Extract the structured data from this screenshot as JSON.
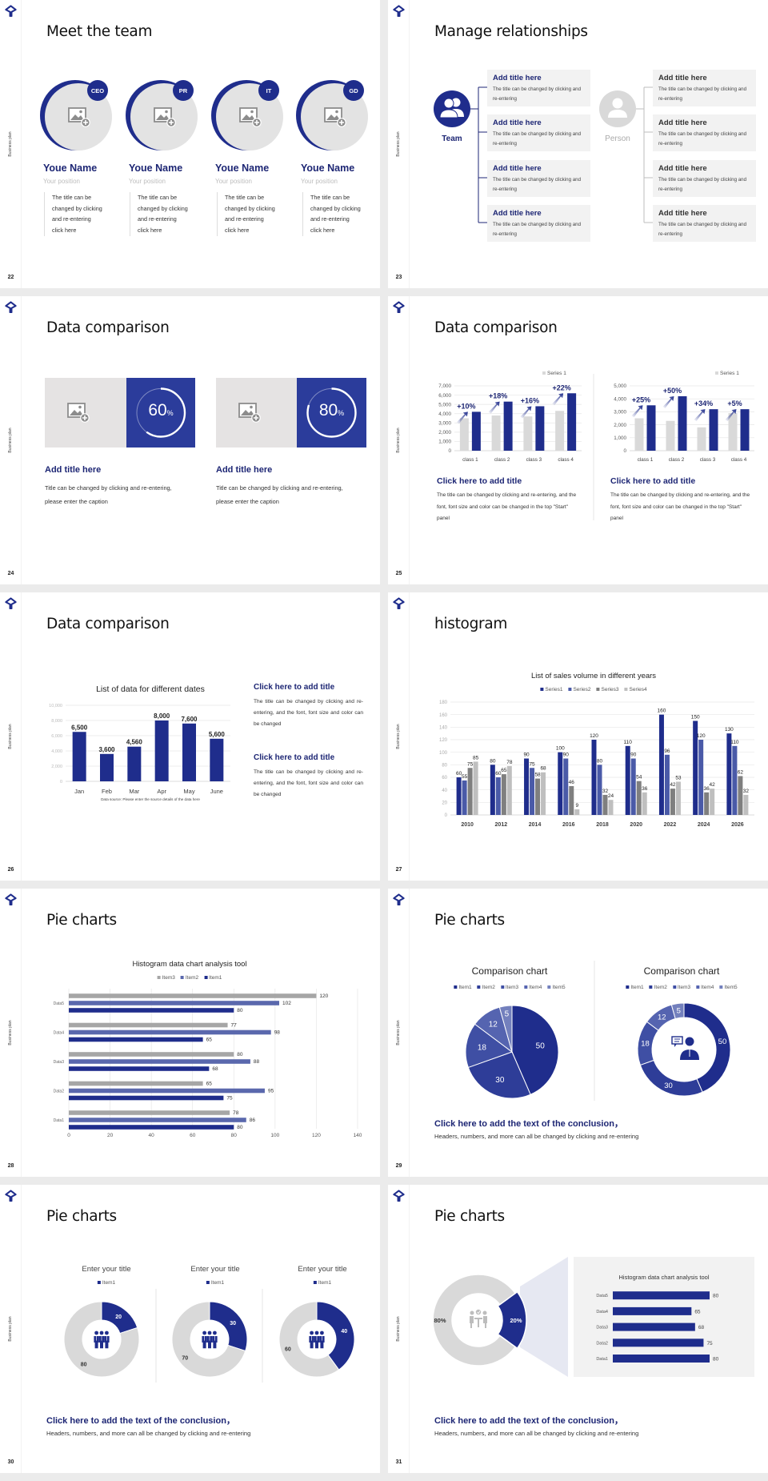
{
  "rail_label": "Business plan",
  "colors": {
    "brand": "#1f2d8c",
    "grey": "#d9d9d9",
    "title_blue": "#1d2674"
  },
  "s22": {
    "page": "22",
    "title": "Meet the team",
    "members": [
      {
        "badge": "CEO",
        "name": "Youe Name",
        "position": "Your position",
        "desc": "The title can be\nchanged by clicking\nand re-entering\nclick here"
      },
      {
        "badge": "PR",
        "name": "Youe Name",
        "position": "Your position",
        "desc": "The title can be\nchanged by clicking\nand re-entering\nclick here"
      },
      {
        "badge": "IT",
        "name": "Youe Name",
        "position": "Your position",
        "desc": "The title can be\nchanged by clicking\nand re-entering\nclick here"
      },
      {
        "badge": "GD",
        "name": "Youe Name",
        "position": "Your position",
        "desc": "The title can be\nchanged by clicking\nand re-entering\nclick here"
      }
    ]
  },
  "s23": {
    "page": "23",
    "title": "Manage relationships",
    "left_label": "Team",
    "right_label": "Person",
    "box_title": "Add title here",
    "box_text": "The title can be changed by clicking and re-entering"
  },
  "s24": {
    "page": "24",
    "title": "Data comparison",
    "cards": [
      {
        "value": 60,
        "pct": "60",
        "unit": "%",
        "title": "Add title here",
        "text": "Title can be changed by clicking and re-entering, please enter the caption"
      },
      {
        "value": 80,
        "pct": "80",
        "unit": "%",
        "title": "Add title here",
        "text": "Title can be changed by clicking and re-entering, please enter the caption"
      }
    ]
  },
  "s25": {
    "page": "25",
    "title": "Data comparison",
    "panels": [
      {
        "title": "Click here to add title",
        "text": "The title can be changed by clicking and re-entering, and the font, font size and color can be changed in the top \"Start\" panel"
      },
      {
        "title": "Click here to add title",
        "text": "The title can be changed by clicking and re-entering, and the font, font size and color can be changed in the top \"Start\" panel"
      }
    ]
  },
  "s26": {
    "page": "26",
    "title": "Data comparison",
    "blocks": [
      {
        "title": "Click here to add title",
        "text": "The title can be changed by clicking and re-entering, and the font, font size and color can be changed"
      },
      {
        "title": "Click here to add title",
        "text": "The title can be changed by clicking and re-entering, and the font, font size and color can be changed"
      }
    ]
  },
  "s27": {
    "page": "27",
    "title": "histogram"
  },
  "s28": {
    "page": "28",
    "title": "Pie charts"
  },
  "s29": {
    "page": "29",
    "title": "Pie charts",
    "conclusion": "Click here to add the text of the conclusion，",
    "conclusion_text": "Headers, numbers, and more can all be changed by clicking and re-entering"
  },
  "s30": {
    "page": "30",
    "title": "Pie charts",
    "conclusion": "Click here to add the text of the conclusion，",
    "conclusion_text": "Headers, numbers, and more can all be changed by clicking and re-entering"
  },
  "s31": {
    "page": "31",
    "title": "Pie charts",
    "conclusion": "Click here to add the text of the conclusion，",
    "conclusion_text": "Headers, numbers, and more can all be changed by clicking and re-entering"
  },
  "chart_data": [
    {
      "id": "s25a",
      "type": "bar",
      "categories": [
        "class 1",
        "class 2",
        "class 3",
        "class 4"
      ],
      "series": [
        {
          "name": "Series 1",
          "values": [
            3500,
            3800,
            3700,
            4300
          ],
          "color": "#d9d9d9"
        },
        {
          "values": [
            4200,
            5300,
            4800,
            6200
          ],
          "color": "#1f2d8c"
        }
      ],
      "annotations": [
        "+10%",
        "+18%",
        "+16%",
        "+22%"
      ],
      "ylim": [
        0,
        7000
      ],
      "ytick": 1000,
      "legend": "top-right",
      "grid": true
    },
    {
      "id": "s25b",
      "type": "bar",
      "categories": [
        "class 1",
        "class 2",
        "class 3",
        "class 4"
      ],
      "series": [
        {
          "name": "Series 1",
          "values": [
            2500,
            2300,
            1800,
            2900
          ],
          "color": "#d9d9d9"
        },
        {
          "values": [
            3500,
            4200,
            3200,
            3200
          ],
          "color": "#1f2d8c"
        }
      ],
      "annotations": [
        "+25%",
        "+50%",
        "+34%",
        "+5%"
      ],
      "ylim": [
        0,
        5000
      ],
      "ytick": 1000,
      "legend": "top-right",
      "grid": true
    },
    {
      "id": "s26",
      "type": "bar",
      "title": "List of data for different dates",
      "note": "Data source: Please enter the source details of the data here",
      "categories": [
        "Jan",
        "Feb",
        "Mar",
        "Apr",
        "May",
        "June"
      ],
      "series": [
        {
          "values": [
            6500,
            3600,
            4560,
            8000,
            7600,
            5600
          ],
          "color": "#1f2d8c"
        }
      ],
      "ylim": [
        0,
        10000
      ],
      "ytick": 2000,
      "grid": true
    },
    {
      "id": "s27",
      "type": "bar",
      "title": "List of sales volume in different years",
      "categories": [
        "2010",
        "2012",
        "2014",
        "2016",
        "2018",
        "2020",
        "2022",
        "2024",
        "2026"
      ],
      "series": [
        {
          "name": "Series1",
          "values": [
            60,
            80,
            90,
            100,
            120,
            110,
            160,
            150,
            130
          ],
          "color": "#1f2d8c"
        },
        {
          "name": "Series2",
          "values": [
            55,
            60,
            75,
            90,
            80,
            90,
            96,
            120,
            110
          ],
          "color": "#4a5aa8"
        },
        {
          "name": "Series3",
          "values": [
            75,
            65,
            58,
            46,
            32,
            54,
            42,
            36,
            62
          ],
          "color": "#7f7f7f"
        },
        {
          "name": "Series4",
          "values": [
            85,
            78,
            68,
            9,
            24,
            36,
            53,
            42,
            32
          ],
          "color": "#bfbfbf"
        }
      ],
      "ylim": [
        0,
        180
      ],
      "ytick": 20,
      "legend": "top",
      "grid": true
    },
    {
      "id": "s28",
      "type": "bar",
      "orientation": "horizontal",
      "title": "Histogram data chart analysis tool",
      "categories": [
        "Data1",
        "Data2",
        "Data3",
        "Data4",
        "Data5"
      ],
      "series": [
        {
          "name": "Item1",
          "values": [
            80,
            75,
            68,
            65,
            80
          ],
          "color": "#1f2d8c"
        },
        {
          "name": "Item2",
          "values": [
            86,
            95,
            88,
            98,
            102
          ],
          "color": "#5a68ad"
        },
        {
          "name": "Item3",
          "values": [
            78,
            65,
            80,
            77,
            120
          ],
          "color": "#a6a6a6"
        }
      ],
      "legend_order": [
        "Item3",
        "Item2",
        "Item1"
      ],
      "xlim": [
        0,
        140
      ],
      "xtick": 20,
      "legend": "top",
      "grid": true
    },
    {
      "id": "s29a",
      "type": "pie",
      "title": "Comparison chart",
      "categories": [
        "Item1",
        "Item2",
        "Item3",
        "Item4",
        "Item5"
      ],
      "values": [
        50,
        30,
        18,
        12,
        5
      ],
      "colors": [
        "#1f2d8c",
        "#2e3d98",
        "#3f4fa4",
        "#5564b0",
        "#7380bd"
      ],
      "legend": "top"
    },
    {
      "id": "s29b",
      "type": "pie",
      "donut": true,
      "title": "Comparison chart",
      "categories": [
        "Item1",
        "Item2",
        "Item3",
        "Item4",
        "Item5"
      ],
      "values": [
        50,
        30,
        18,
        12,
        5
      ],
      "colors": [
        "#1f2d8c",
        "#2e3d98",
        "#3f4fa4",
        "#5564b0",
        "#7380bd"
      ],
      "legend": "top"
    },
    {
      "id": "s30a",
      "type": "pie",
      "donut": true,
      "title": "Enter your title",
      "legend_items": [
        "Item1"
      ],
      "values": [
        20,
        80
      ],
      "colors": [
        "#1f2d8c",
        "#d9d9d9"
      ]
    },
    {
      "id": "s30b",
      "type": "pie",
      "donut": true,
      "title": "Enter your title",
      "legend_items": [
        "Item1"
      ],
      "values": [
        30,
        70
      ],
      "colors": [
        "#1f2d8c",
        "#d9d9d9"
      ]
    },
    {
      "id": "s30c",
      "type": "pie",
      "donut": true,
      "title": "Enter your title",
      "legend_items": [
        "Item1"
      ],
      "values": [
        40,
        60
      ],
      "colors": [
        "#1f2d8c",
        "#d9d9d9"
      ]
    },
    {
      "id": "s31a",
      "type": "pie",
      "donut": true,
      "values": [
        20,
        80
      ],
      "labels": [
        "20%",
        "80%"
      ],
      "colors": [
        "#1f2d8c",
        "#d9d9d9"
      ]
    },
    {
      "id": "s31b",
      "type": "bar",
      "orientation": "horizontal",
      "title": "Histogram data chart analysis tool",
      "categories": [
        "Data1",
        "Data2",
        "Data3",
        "Data4",
        "Data5"
      ],
      "series": [
        {
          "values": [
            80,
            75,
            68,
            65,
            80
          ],
          "color": "#1f2d8c"
        }
      ]
    }
  ]
}
